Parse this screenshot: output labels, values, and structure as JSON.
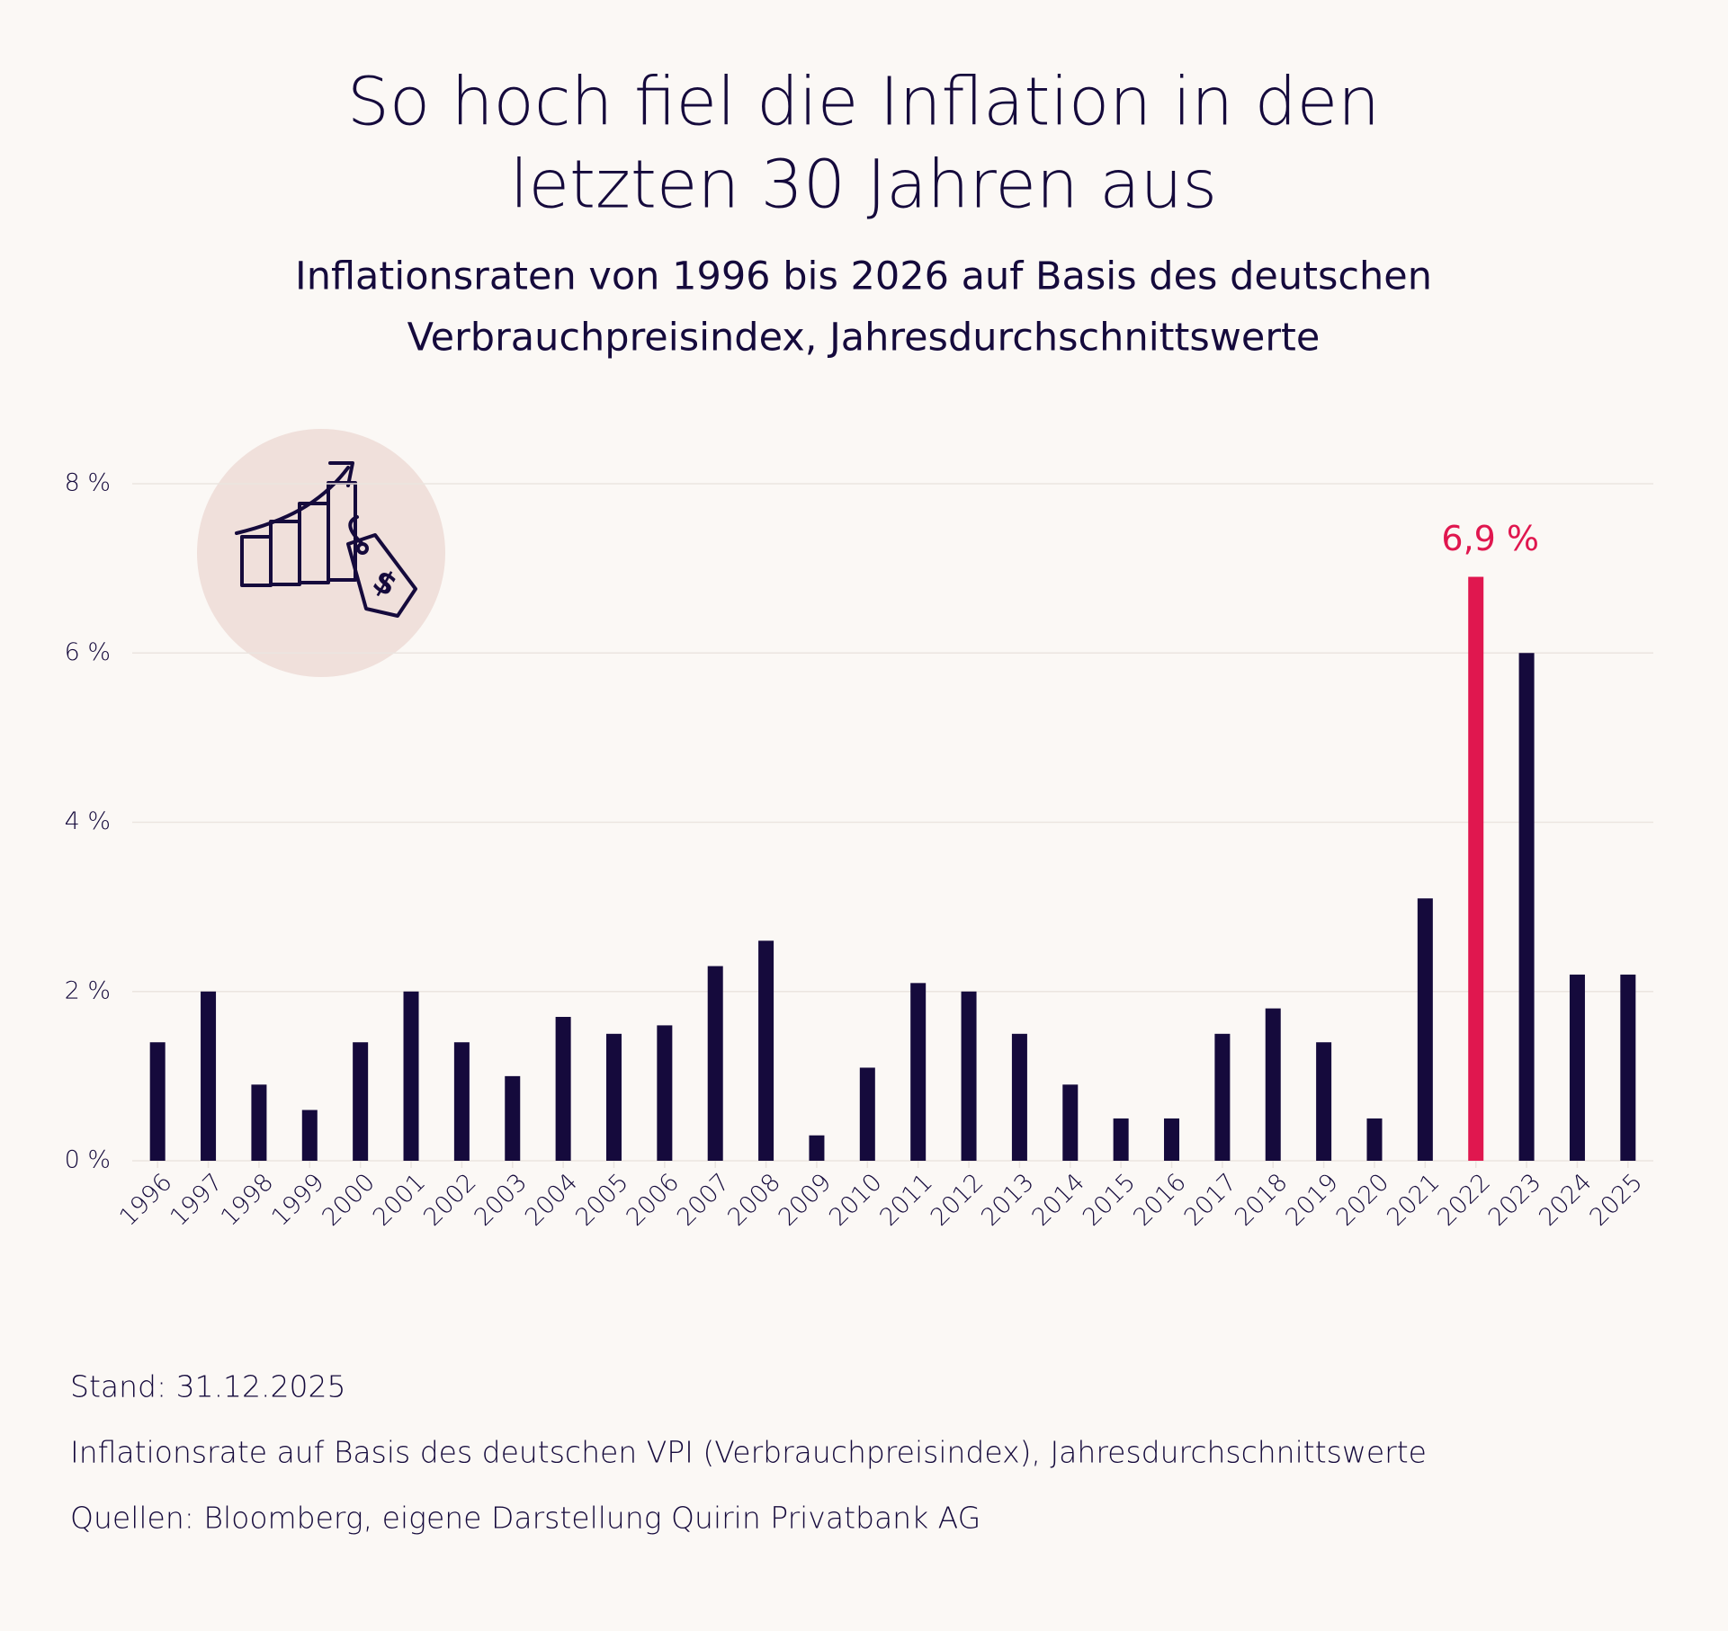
{
  "chart_data": {
    "type": "bar",
    "title": [
      "So hoch fiel die Inflation in den",
      "letzten 30 Jahren aus"
    ],
    "subtitle": [
      "Inflationsraten von 1996 bis 2026 auf Basis des deutschen",
      "Verbrauchpreisindex, Jahresdurchschnittswerte"
    ],
    "categories": [
      "1996",
      "1997",
      "1998",
      "1999",
      "2000",
      "2001",
      "2002",
      "2003",
      "2004",
      "2005",
      "2006",
      "2007",
      "2008",
      "2009",
      "2010",
      "2011",
      "2012",
      "2013",
      "2014",
      "2015",
      "2016",
      "2017",
      "2018",
      "2019",
      "2020",
      "2021",
      "2022",
      "2023",
      "2024",
      "2025"
    ],
    "values": [
      1.4,
      2.0,
      0.9,
      0.6,
      1.4,
      2.0,
      1.4,
      1.0,
      1.7,
      1.5,
      1.6,
      2.3,
      2.6,
      0.3,
      1.1,
      2.1,
      2.0,
      1.5,
      0.9,
      0.5,
      0.5,
      1.5,
      1.8,
      1.4,
      0.5,
      3.1,
      6.9,
      6.0,
      2.2,
      2.2
    ],
    "value_labels": [
      null,
      null,
      null,
      null,
      null,
      null,
      null,
      null,
      null,
      null,
      null,
      null,
      null,
      null,
      null,
      null,
      null,
      null,
      null,
      null,
      null,
      null,
      null,
      null,
      null,
      null,
      "6,9 %",
      null,
      null,
      null
    ],
    "colors": [
      "#150a3c",
      "#150a3c",
      "#150a3c",
      "#150a3c",
      "#150a3c",
      "#150a3c",
      "#150a3c",
      "#150a3c",
      "#150a3c",
      "#150a3c",
      "#150a3c",
      "#150a3c",
      "#150a3c",
      "#150a3c",
      "#150a3c",
      "#150a3c",
      "#150a3c",
      "#150a3c",
      "#150a3c",
      "#150a3c",
      "#150a3c",
      "#150a3c",
      "#150a3c",
      "#150a3c",
      "#150a3c",
      "#150a3c",
      "#e0174f",
      "#150a3c",
      "#150a3c",
      "#150a3c"
    ],
    "ylim": [
      0,
      8
    ],
    "yticks": [
      {
        "value": 0,
        "label": "0 %"
      },
      {
        "value": 2,
        "label": "2 %"
      },
      {
        "value": 4,
        "label": "4 %"
      },
      {
        "value": 6,
        "label": "6 %"
      },
      {
        "value": 8,
        "label": "8 %"
      }
    ],
    "grid": true,
    "notes": [
      "Stand: 31.12.2025",
      "Inflationsrate auf Basis des deutschen VPI (Verbrauchpreisindex), Jahresdurchschnittswerte",
      "Quellen: Bloomberg, eigene Darstellung Quirin Privatbank AG"
    ]
  }
}
